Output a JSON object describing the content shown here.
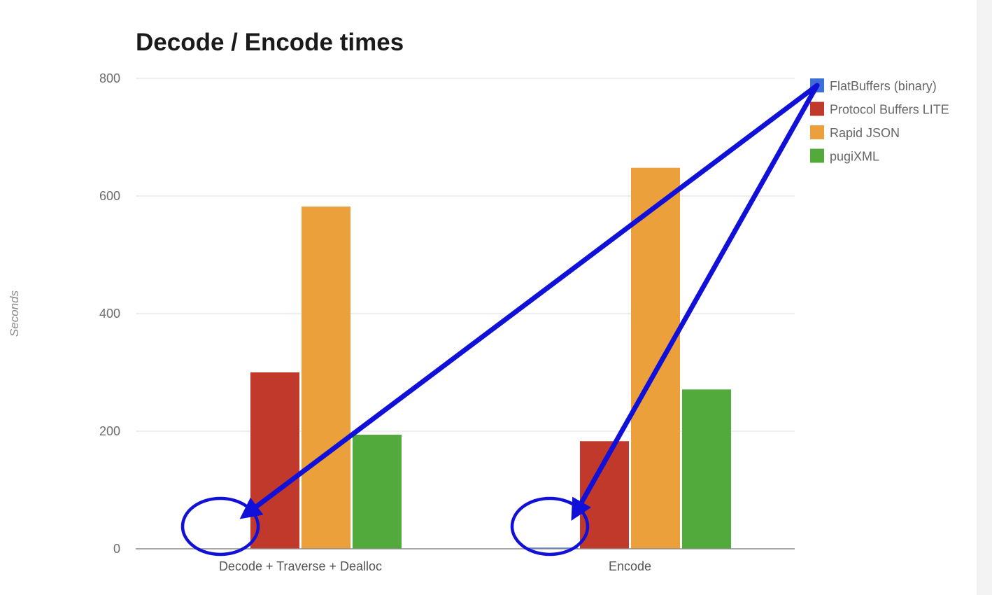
{
  "chart_data": {
    "type": "bar",
    "title": "Decode / Encode times",
    "xlabel": "",
    "ylabel": "Seconds",
    "ylim": [
      0,
      800
    ],
    "yticks": [
      "0",
      "200",
      "400",
      "600",
      "800"
    ],
    "grid": true,
    "legend_position": "right",
    "categories": [
      "Decode + Traverse + Dealloc",
      "Encode"
    ],
    "series": [
      {
        "name": "FlatBuffers (binary)",
        "color": "#3d6fd6",
        "values": [
          0,
          2
        ]
      },
      {
        "name": "Protocol Buffers LITE",
        "color": "#c0392b",
        "values": [
          300,
          183
        ]
      },
      {
        "name": "Rapid JSON",
        "color": "#eba03c",
        "values": [
          582,
          648
        ]
      },
      {
        "name": "pugiXML",
        "color": "#52a93c",
        "values": [
          194,
          271
        ]
      }
    ],
    "annotations": {
      "color": "#1010d8",
      "arrows_from": "legend-flatbuffers",
      "arrows_to": [
        "Decode + Traverse + Dealloc",
        "Encode"
      ],
      "circles_around": [
        "Decode + Traverse + Dealloc",
        "Encode"
      ]
    }
  }
}
